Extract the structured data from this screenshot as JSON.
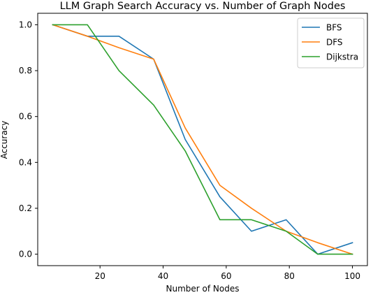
{
  "chart_data": {
    "type": "line",
    "title": "LLM Graph Search Accuracy vs. Number of Graph Nodes",
    "xlabel": "Number of Nodes",
    "ylabel": "Accuracy",
    "xlim": [
      0.25,
      104.75
    ],
    "ylim": [
      -0.05,
      1.05
    ],
    "xticks": [
      20,
      40,
      60,
      80,
      100
    ],
    "xtick_labels": [
      "20",
      "40",
      "60",
      "80",
      "100"
    ],
    "yticks": [
      0.0,
      0.2,
      0.4,
      0.6,
      0.8,
      1.0
    ],
    "ytick_labels": [
      "0.0",
      "0.2",
      "0.4",
      "0.6",
      "0.8",
      "1.0"
    ],
    "grid": false,
    "legend_position": "top-right",
    "x": [
      5,
      16,
      26,
      37,
      47,
      58,
      68,
      79,
      89,
      100
    ],
    "series": [
      {
        "name": "BFS",
        "color": "#1f77b4",
        "values": [
          1.0,
          0.95,
          0.95,
          0.85,
          0.5,
          0.25,
          0.1,
          0.15,
          0.0,
          0.05
        ]
      },
      {
        "name": "DFS",
        "color": "#ff7f0e",
        "values": [
          1.0,
          0.95,
          0.9,
          0.85,
          0.55,
          0.3,
          0.2,
          0.1,
          0.05,
          0.0
        ]
      },
      {
        "name": "Dijkstra",
        "color": "#2ca02c",
        "values": [
          1.0,
          1.0,
          0.8,
          0.65,
          0.45,
          0.15,
          0.15,
          0.1,
          0.0,
          0.0
        ]
      }
    ]
  }
}
